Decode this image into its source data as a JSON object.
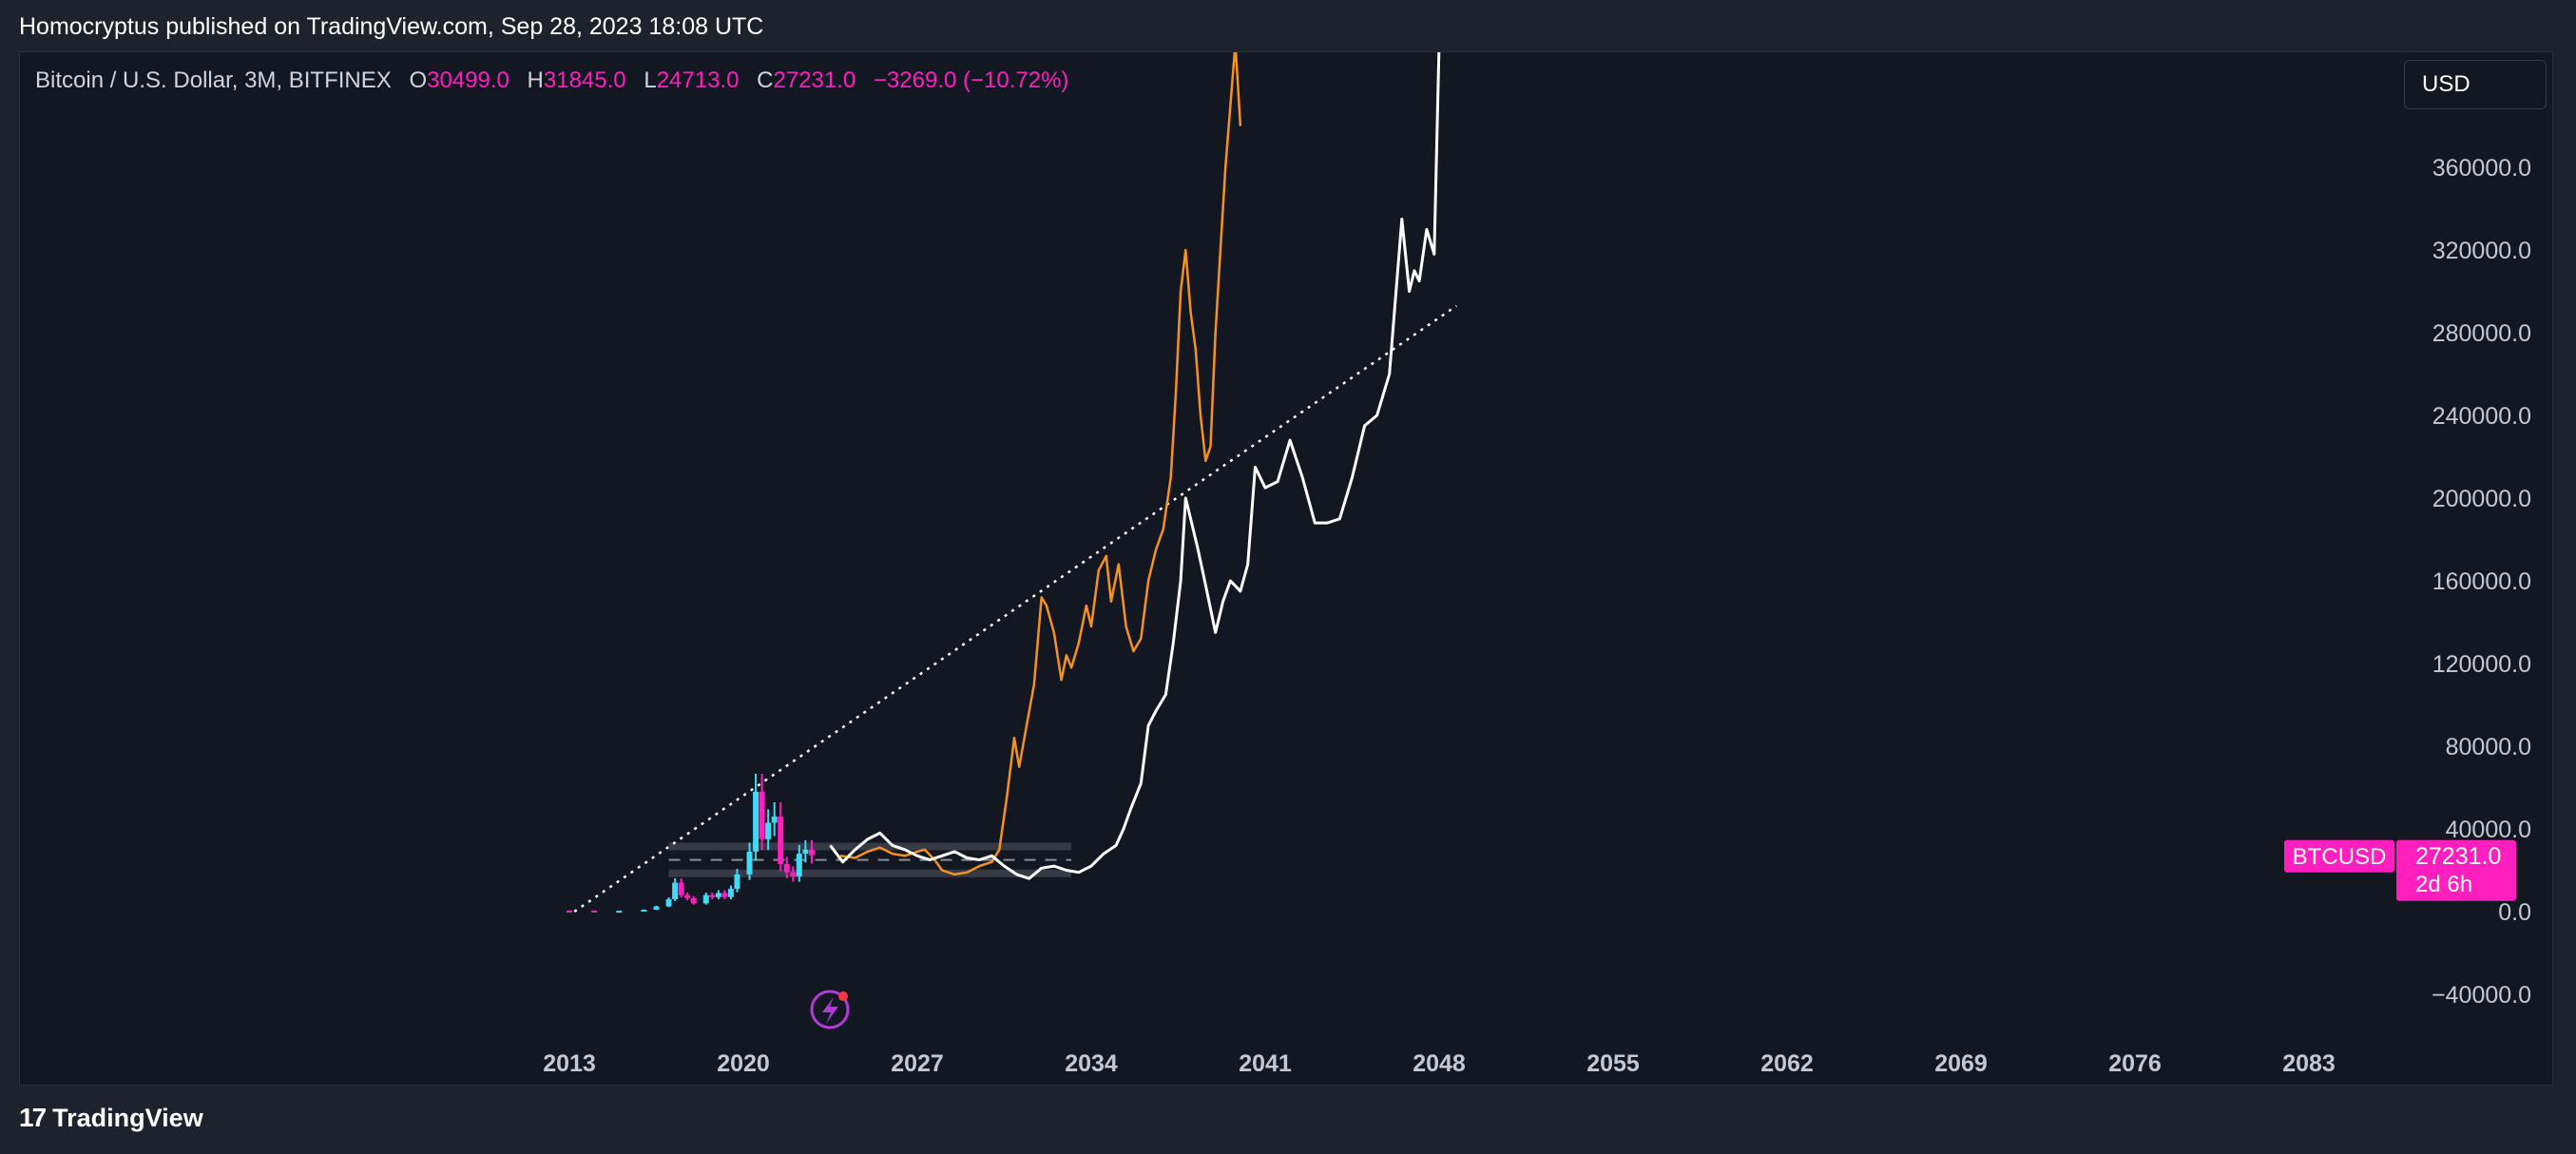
{
  "header": {
    "publisher_line": "Homocryptus published on TradingView.com, Sep 28, 2023 18:08 UTC"
  },
  "legend": {
    "symbol": "Bitcoin / U.S. Dollar, 3M, BITFINEX",
    "open_label": "O",
    "open": "30499.0",
    "high_label": "H",
    "high": "31845.0",
    "low_label": "L",
    "low": "24713.0",
    "close_label": "C",
    "close": "27231.0",
    "change": "−3269.0 (−10.72%)"
  },
  "currency_button": "USD",
  "price_tag": {
    "ticker": "BTCUSD",
    "price": "27231.0",
    "countdown": "2d 6h"
  },
  "footer": {
    "brand": "TradingView",
    "logo_glyph": "17"
  },
  "colors": {
    "accent": "#ff1fbf",
    "background": "#131722",
    "projection_orange": "#f7931a",
    "projection_white": "#ffffff",
    "candle_up": "#42d9f5"
  },
  "chart_data": {
    "type": "line",
    "y_axis": {
      "min": -40000,
      "max": 360000,
      "ticks": [
        "360000.0",
        "320000.0",
        "280000.0",
        "240000.0",
        "200000.0",
        "160000.0",
        "120000.0",
        "80000.0",
        "40000.0",
        "0.0",
        "−40000.0"
      ]
    },
    "x_axis": {
      "ticks": [
        "2013",
        "2020",
        "2027",
        "2034",
        "2041",
        "2048",
        "2055",
        "2062",
        "2069",
        "2076",
        "2083"
      ]
    },
    "series": [
      {
        "color": "#f7931a",
        "x": [
          2023.9,
          2024.5,
          2025.0,
          2025.5,
          2026.0,
          2026.5,
          2027.0,
          2027.3,
          2027.7,
          2028.0,
          2028.5,
          2029.0,
          2029.5,
          2030.0,
          2030.3,
          2030.6,
          2030.9,
          2031.1,
          2031.4,
          2031.7,
          2032.0,
          2032.2,
          2032.5,
          2032.8,
          2033.0,
          2033.2,
          2033.5,
          2033.8,
          2034.0,
          2034.3,
          2034.6,
          2034.8,
          2035.1,
          2035.4,
          2035.7,
          2036.0,
          2036.3,
          2036.6,
          2036.9,
          2037.2,
          2037.4,
          2037.6,
          2037.8,
          2038.0,
          2038.2,
          2038.4,
          2038.6,
          2038.8,
          2039.0,
          2039.2,
          2039.4,
          2039.6,
          2039.8,
          2040.0
        ],
        "y": [
          27000,
          26000,
          29000,
          31000,
          28000,
          27000,
          29000,
          30000,
          25000,
          20000,
          18000,
          19000,
          22000,
          24000,
          30000,
          55000,
          84000,
          70000,
          90000,
          110000,
          152000,
          148000,
          135000,
          112000,
          124000,
          118000,
          130000,
          148000,
          138000,
          165000,
          172000,
          150000,
          168000,
          138000,
          126000,
          132000,
          160000,
          175000,
          185000,
          210000,
          250000,
          300000,
          320000,
          290000,
          272000,
          240000,
          218000,
          225000,
          280000,
          320000,
          360000,
          390000,
          420000,
          380000
        ]
      },
      {
        "color": "#ffffff",
        "x": [
          2023.5,
          2024.0,
          2024.5,
          2025.0,
          2025.5,
          2026.0,
          2026.5,
          2027.0,
          2027.5,
          2028.0,
          2028.5,
          2029.0,
          2029.5,
          2030.0,
          2030.5,
          2031.0,
          2031.5,
          2032.0,
          2032.5,
          2033.0,
          2033.5,
          2034.0,
          2034.5,
          2035.0,
          2035.3,
          2035.6,
          2036.0,
          2036.3,
          2036.6,
          2037.0,
          2037.3,
          2037.6,
          2037.8,
          2038.0,
          2038.3,
          2038.6,
          2039.0,
          2039.3,
          2039.6,
          2040.0,
          2040.3,
          2040.6,
          2041.0,
          2041.5,
          2042.0,
          2042.5,
          2043.0,
          2043.5,
          2044.0,
          2044.5,
          2045.0,
          2045.5,
          2046.0,
          2046.5,
          2046.8,
          2047.0,
          2047.2,
          2047.5,
          2047.8,
          2048.0
        ],
        "y": [
          32000,
          24000,
          30000,
          35000,
          38000,
          32000,
          30000,
          27000,
          25000,
          27000,
          29000,
          26000,
          25000,
          27000,
          22000,
          18000,
          16000,
          21000,
          22000,
          20000,
          19000,
          22000,
          28000,
          32000,
          40000,
          50000,
          62000,
          90000,
          97000,
          105000,
          130000,
          160000,
          200000,
          190000,
          175000,
          158000,
          135000,
          150000,
          160000,
          155000,
          168000,
          215000,
          205000,
          208000,
          228000,
          210000,
          188000,
          188000,
          190000,
          210000,
          235000,
          240000,
          260000,
          335000,
          300000,
          310000,
          305000,
          330000,
          318000,
          420000
        ]
      }
    ]
  }
}
